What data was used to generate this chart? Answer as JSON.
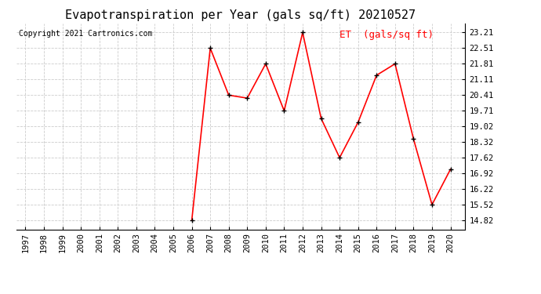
{
  "title": "Evapotranspiration per Year (gals sq/ft) 20210527",
  "copyright": "Copyright 2021 Cartronics.com",
  "legend_label": "ET  (gals/sq ft)",
  "years": [
    1997,
    1998,
    1999,
    2000,
    2001,
    2002,
    2003,
    2004,
    2005,
    2006,
    2007,
    2008,
    2009,
    2010,
    2011,
    2012,
    2013,
    2014,
    2015,
    2016,
    2017,
    2018,
    2019,
    2020
  ],
  "et_values": [
    null,
    null,
    null,
    null,
    null,
    null,
    null,
    null,
    null,
    14.82,
    22.51,
    20.41,
    20.28,
    21.81,
    19.71,
    23.21,
    19.37,
    17.62,
    19.2,
    21.3,
    21.81,
    18.45,
    15.52,
    17.1
  ],
  "yticks": [
    14.82,
    15.52,
    16.22,
    16.92,
    17.62,
    18.32,
    19.02,
    19.71,
    20.41,
    21.11,
    21.81,
    22.51,
    23.21
  ],
  "ylim": [
    14.42,
    23.61
  ],
  "line_color": "red",
  "marker_color": "black",
  "bg_color": "#ffffff",
  "grid_color": "#cccccc",
  "title_fontsize": 11,
  "copyright_fontsize": 7,
  "legend_fontsize": 9,
  "tick_fontsize": 7.5
}
